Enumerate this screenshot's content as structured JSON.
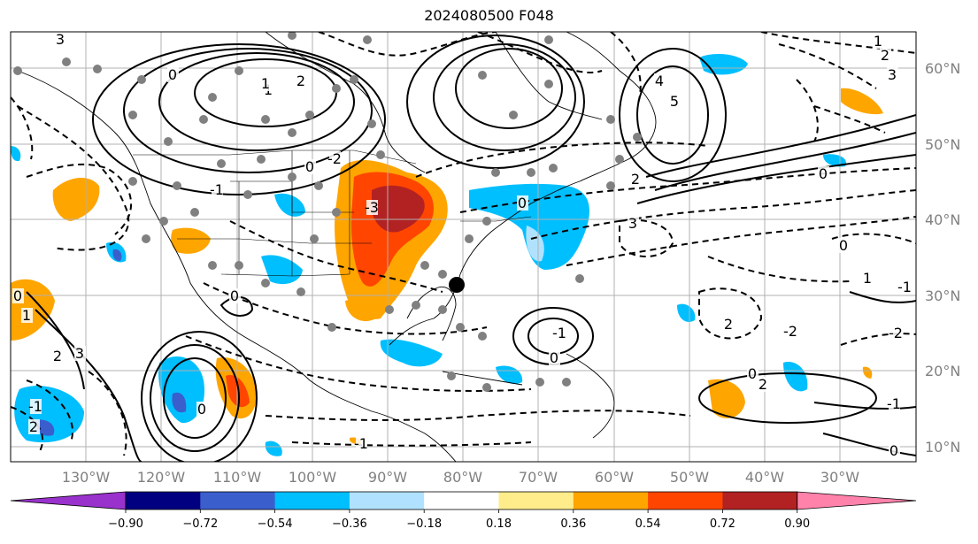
{
  "title": "2024080500 F048",
  "lon_labels": [
    "130°W",
    "120°W",
    "110°W",
    "100°W",
    "90°W",
    "80°W",
    "70°W",
    "60°W",
    "50°W",
    "40°W",
    "30°W"
  ],
  "lat_labels": [
    "60°N",
    "50°N",
    "40°N",
    "30°N",
    "20°N",
    "10°N"
  ],
  "colorbar": {
    "ticks": [
      "−0.90",
      "−0.72",
      "−0.54",
      "−0.36",
      "−0.18",
      "0.18",
      "0.36",
      "0.54",
      "0.72",
      "0.90"
    ],
    "colors": [
      "#9932CC",
      "#000080",
      "#3A5FCD",
      "#00BFFF",
      "#B0E2FF",
      "#FFFFFF",
      "#FFEC8B",
      "#FFA500",
      "#FF4500",
      "#B22222",
      "#FF82AB"
    ]
  },
  "contour_labels": [
    "3",
    "2",
    "1",
    "0",
    "-1",
    "-2",
    "-3",
    "4",
    "5",
    "0",
    "1",
    "2",
    "3",
    "-1",
    "-2",
    "0",
    "1",
    "2",
    "0",
    "-1",
    "0",
    "-1",
    "2",
    "3",
    "2",
    "0",
    "1",
    "0",
    "-1",
    "0",
    "3",
    "2",
    "0",
    "1",
    "0",
    "-1",
    "2",
    "-2",
    "0"
  ]
}
